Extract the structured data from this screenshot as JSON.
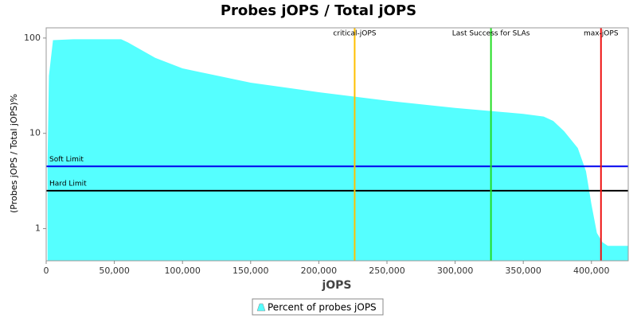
{
  "chart_data": {
    "type": "area",
    "title": "Probes jOPS / Total jOPS",
    "x_label": "jOPS",
    "y_label": "(Probes jOPS / Total jOPS)%",
    "x": [
      1000,
      2000,
      5000,
      20000,
      55000,
      60000,
      80000,
      100000,
      150000,
      200000,
      250000,
      300000,
      350000,
      365000,
      372000,
      380000,
      390000,
      396000,
      400000,
      404000,
      408000,
      412000,
      427000
    ],
    "series": [
      {
        "name": "Percent of probes jOPS",
        "color": "#55ffff",
        "values": [
          5,
          40,
          95,
          97,
          97,
          90,
          62,
          48,
          34,
          27,
          22,
          18.5,
          16,
          15,
          13.5,
          10.5,
          7,
          4,
          1.8,
          0.9,
          0.72,
          0.66,
          0.66
        ]
      }
    ],
    "xlim": [
      0,
      427000
    ],
    "ylim": [
      0.46,
      128
    ],
    "log_y": true,
    "xticks": [
      {
        "value": 0,
        "label": "0"
      },
      {
        "value": 50000,
        "label": "50,000"
      },
      {
        "value": 100000,
        "label": "100,000"
      },
      {
        "value": 150000,
        "label": "150,000"
      },
      {
        "value": 200000,
        "label": "200,000"
      },
      {
        "value": 250000,
        "label": "250,000"
      },
      {
        "value": 300000,
        "label": "300,000"
      },
      {
        "value": 350000,
        "label": "350,000"
      },
      {
        "value": 400000,
        "label": "400,000"
      }
    ],
    "yticks": [
      1,
      10,
      100
    ],
    "vertical_lines": [
      {
        "label": "critical-jOPS",
        "value": 226300,
        "color": "#ffc000"
      },
      {
        "label": "Last Success for SLAs",
        "value": 326300,
        "color": "#22dd22"
      },
      {
        "label": "max-jOPS",
        "value": 407000,
        "color": "#ee1111"
      }
    ],
    "horizontal_lines": [
      {
        "label": "Soft Limit",
        "value": 4.5,
        "color": "#0000ee"
      },
      {
        "label": "Hard Limit",
        "value": 2.5,
        "color": "#000000"
      }
    ]
  }
}
